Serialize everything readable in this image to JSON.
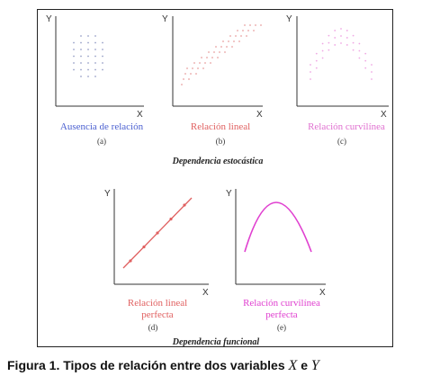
{
  "axes": {
    "x": "X",
    "y": "Y"
  },
  "panels": {
    "a": {
      "title": "Ausencia de relación",
      "sub": "(a)",
      "color": "#4a5fd0"
    },
    "b": {
      "title": "Relación lineal",
      "sub": "(b)",
      "color": "#e06060"
    },
    "c": {
      "title": "Relación curvilínea",
      "sub": "(c)",
      "color": "#e070d0"
    },
    "d": {
      "title_line1": "Relación lineal",
      "title_line2": "perfecta",
      "sub": "(d)",
      "color": "#e06060"
    },
    "e": {
      "title_line1": "Relación curvilínea",
      "title_line2": "perfecta",
      "sub": "(e)",
      "color": "#e040d0"
    }
  },
  "sections": {
    "stochastic": "Dependencia estocástica",
    "functional": "Dependencia funcional"
  },
  "caption": {
    "text": "Figura 1. Tipos de relación entre dos variables",
    "var1": "X",
    "connector": "e",
    "var2": "Y"
  }
}
